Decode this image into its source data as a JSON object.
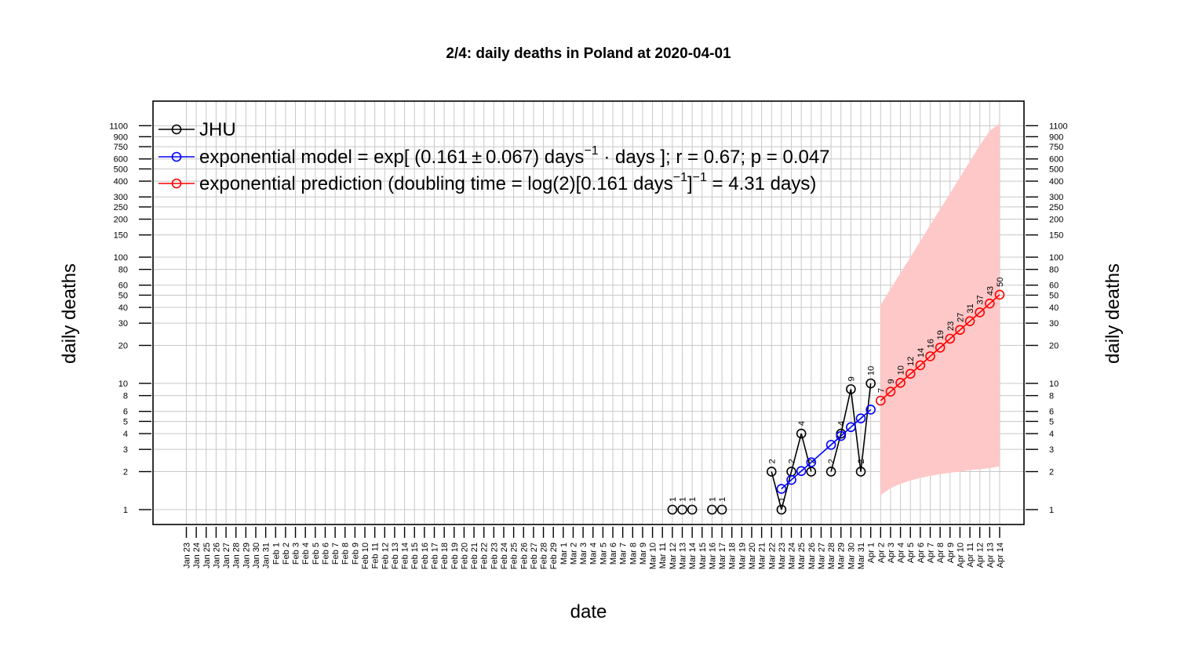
{
  "chart_data": {
    "type": "line",
    "title": "2/4: daily deaths in Poland at 2020-04-01",
    "xlabel": "date",
    "ylabel": "daily deaths",
    "y_scale": "log",
    "grid": true,
    "legend_position": "top-left",
    "colors": {
      "observed": "#000000",
      "model": "#0000ff",
      "prediction": "#ff0000",
      "band": "#ffc8c8",
      "grid": "#c8c8c8"
    },
    "x_ticks": [
      "Jan 23",
      "Jan 24",
      "Jan 25",
      "Jan 26",
      "Jan 27",
      "Jan 28",
      "Jan 29",
      "Jan 30",
      "Jan 31",
      "Feb 1",
      "Feb 2",
      "Feb 3",
      "Feb 4",
      "Feb 5",
      "Feb 6",
      "Feb 7",
      "Feb 8",
      "Feb 9",
      "Feb 10",
      "Feb 11",
      "Feb 12",
      "Feb 13",
      "Feb 14",
      "Feb 15",
      "Feb 16",
      "Feb 17",
      "Feb 18",
      "Feb 19",
      "Feb 20",
      "Feb 21",
      "Feb 22",
      "Feb 23",
      "Feb 24",
      "Feb 25",
      "Feb 26",
      "Feb 27",
      "Feb 28",
      "Feb 29",
      "Mar 1",
      "Mar 2",
      "Mar 3",
      "Mar 4",
      "Mar 5",
      "Mar 6",
      "Mar 7",
      "Mar 8",
      "Mar 9",
      "Mar 10",
      "Mar 11",
      "Mar 12",
      "Mar 13",
      "Mar 14",
      "Mar 15",
      "Mar 16",
      "Mar 17",
      "Mar 18",
      "Mar 19",
      "Mar 20",
      "Mar 21",
      "Mar 22",
      "Mar 23",
      "Mar 24",
      "Mar 25",
      "Mar 26",
      "Mar 27",
      "Mar 28",
      "Mar 29",
      "Mar 30",
      "Mar 31",
      "Apr 1",
      "Apr 2",
      "Apr 3",
      "Apr 4",
      "Apr 5",
      "Apr 6",
      "Apr 7",
      "Apr 8",
      "Apr 9",
      "Apr 10",
      "Apr 11",
      "Apr 12",
      "Apr 13",
      "Apr 14"
    ],
    "y_ticks": [
      1,
      2,
      3,
      4,
      5,
      6,
      8,
      10,
      20,
      30,
      40,
      50,
      60,
      80,
      100,
      150,
      200,
      250,
      300,
      400,
      500,
      600,
      750,
      900,
      1100
    ],
    "legend": [
      {
        "key": "observed",
        "parts": [
          {
            "t": "JHU"
          }
        ]
      },
      {
        "key": "model",
        "parts": [
          {
            "t": "exponential model = exp[ (0.161 ± 0.067) days"
          },
          {
            "t": "−1",
            "sup": true
          },
          {
            "t": "  ·  days ]; r = 0.67; p = 0.047"
          }
        ]
      },
      {
        "key": "prediction",
        "parts": [
          {
            "t": "exponential prediction (doubling time = log(2)[0.161 days"
          },
          {
            "t": "−1",
            "sup": true
          },
          {
            "t": "]"
          },
          {
            "t": "−1",
            "sup": true
          },
          {
            "t": " = 4.31 days)"
          }
        ]
      }
    ],
    "series": [
      {
        "name": "JHU",
        "key": "observed",
        "labeled": true,
        "x": [
          "Mar 12",
          "Mar 13",
          "Mar 14",
          "Mar 16",
          "Mar 17",
          "Mar 22",
          "Mar 23",
          "Mar 24",
          "Mar 25",
          "Mar 26",
          "Mar 28",
          "Mar 29",
          "Mar 30",
          "Mar 31",
          "Apr 1"
        ],
        "y": [
          1,
          1,
          1,
          1,
          1,
          2,
          1,
          2,
          4,
          2,
          2,
          4,
          9,
          2,
          10
        ],
        "connect": [
          false,
          false,
          false,
          false,
          false,
          false,
          true,
          true,
          true,
          true,
          false,
          true,
          true,
          true,
          true
        ]
      },
      {
        "name": "exponential model",
        "key": "model",
        "labeled": false,
        "x": [
          "Mar 23",
          "Mar 24",
          "Mar 25",
          "Mar 26",
          "Mar 28",
          "Mar 29",
          "Mar 30",
          "Mar 31",
          "Apr 1"
        ],
        "y": [
          1.46,
          1.72,
          2.02,
          2.37,
          3.26,
          3.83,
          4.5,
          5.28,
          6.2
        ],
        "connect": [
          false,
          true,
          true,
          true,
          true,
          true,
          true,
          true,
          true
        ]
      },
      {
        "name": "exponential prediction",
        "key": "prediction",
        "labeled": true,
        "x": [
          "Apr 2",
          "Apr 3",
          "Apr 4",
          "Apr 5",
          "Apr 6",
          "Apr 7",
          "Apr 8",
          "Apr 9",
          "Apr 10",
          "Apr 11",
          "Apr 12",
          "Apr 13",
          "Apr 14"
        ],
        "y": [
          7,
          9,
          10,
          12,
          14,
          16,
          19,
          23,
          27,
          31,
          37,
          43,
          50
        ],
        "point_y": [
          7.3,
          8.6,
          10.1,
          11.9,
          13.9,
          16.4,
          19.2,
          22.6,
          26.5,
          31.1,
          36.5,
          42.9,
          50.4
        ],
        "connect": [
          false,
          true,
          true,
          true,
          true,
          true,
          true,
          true,
          true,
          true,
          true,
          true,
          true
        ]
      }
    ],
    "prediction_band": {
      "x": [
        "Apr 2",
        "Apr 3",
        "Apr 4",
        "Apr 5",
        "Apr 6",
        "Apr 7",
        "Apr 8",
        "Apr 9",
        "Apr 10",
        "Apr 11",
        "Apr 12",
        "Apr 13",
        "Apr 14"
      ],
      "lower": [
        1.3,
        1.48,
        1.6,
        1.7,
        1.78,
        1.85,
        1.91,
        1.96,
        2.0,
        2.05,
        2.09,
        2.13,
        2.2
      ],
      "upper": [
        42,
        56,
        75,
        100,
        134,
        180,
        240,
        320,
        430,
        575,
        770,
        1000,
        1150
      ]
    }
  }
}
